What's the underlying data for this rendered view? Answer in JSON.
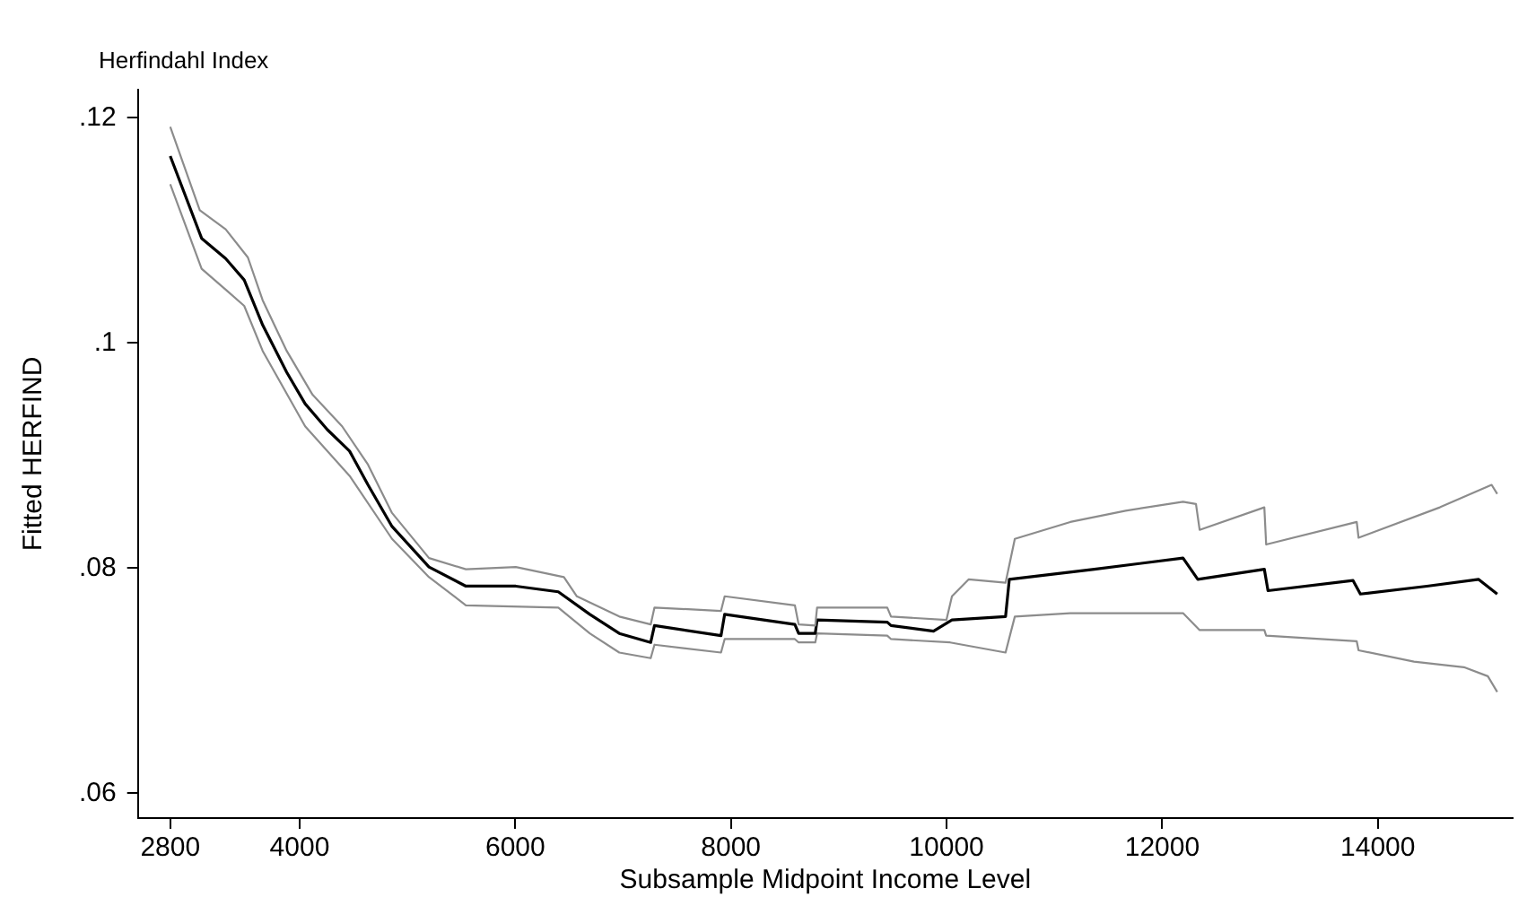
{
  "chart_data": {
    "type": "line",
    "title": "Herfindahl Index",
    "xlabel": "Subsample Midpoint Income Level",
    "ylabel": "Fitted HERFIND",
    "xlim": [
      2500,
      15250
    ],
    "xticks": [
      2800,
      4000,
      6000,
      8000,
      10000,
      12000,
      14000
    ],
    "ylim": [
      0.0578,
      0.1225
    ],
    "yticks": [
      {
        "value": 0.06,
        "label": ".06"
      },
      {
        "value": 0.08,
        "label": ".08"
      },
      {
        "value": 0.1,
        "label": ".1"
      },
      {
        "value": 0.12,
        "label": ".12"
      }
    ],
    "grid": false,
    "legend": false,
    "marker": "none",
    "line_style": "solid",
    "series": [
      {
        "color": "#8c8c8c",
        "x": [
          2800,
          3074,
          3314,
          3520,
          3657,
          3880,
          4120,
          4394,
          4634,
          4857,
          5200,
          5542,
          6005,
          6451,
          6571,
          6965,
          7256,
          7291,
          7908,
          7942,
          8593,
          8628,
          8782,
          8799,
          9450,
          9485,
          9999,
          10050,
          10204,
          10547,
          10633,
          11147,
          11661,
          12193,
          12313,
          12347,
          12947,
          12964,
          13804,
          13821,
          14575,
          15055,
          15107
        ],
        "values": [
          0.1192,
          0.1118,
          0.1101,
          0.1076,
          0.1038,
          0.0993,
          0.0954,
          0.0926,
          0.0892,
          0.0849,
          0.0809,
          0.0799,
          0.0801,
          0.0792,
          0.0775,
          0.0757,
          0.075,
          0.0765,
          0.0762,
          0.0775,
          0.0767,
          0.075,
          0.0749,
          0.0765,
          0.0765,
          0.0757,
          0.0754,
          0.0775,
          0.079,
          0.0787,
          0.0826,
          0.0841,
          0.0851,
          0.0859,
          0.0857,
          0.0834,
          0.0854,
          0.0821,
          0.0841,
          0.0827,
          0.0854,
          0.0874,
          0.0866
        ]
      },
      {
        "color": "#000000",
        "x": [
          2800,
          3091,
          3314,
          3486,
          3657,
          3880,
          4051,
          4257,
          4463,
          4634,
          4857,
          5200,
          5542,
          6005,
          6399,
          6691,
          6965,
          7256,
          7291,
          7908,
          7942,
          8593,
          8628,
          8782,
          8799,
          9450,
          9485,
          9879,
          10050,
          10547,
          10582,
          11370,
          12193,
          12330,
          12947,
          12981,
          13770,
          13838,
          14455,
          14935,
          15107
        ],
        "values": [
          0.1166,
          0.1093,
          0.1075,
          0.1056,
          0.1016,
          0.0974,
          0.0946,
          0.0923,
          0.0904,
          0.0874,
          0.0837,
          0.0801,
          0.0784,
          0.0784,
          0.0779,
          0.0759,
          0.0742,
          0.0734,
          0.0749,
          0.074,
          0.0759,
          0.075,
          0.0742,
          0.0742,
          0.0754,
          0.0752,
          0.0749,
          0.0744,
          0.0754,
          0.0757,
          0.079,
          0.0799,
          0.0809,
          0.079,
          0.0799,
          0.078,
          0.0789,
          0.0777,
          0.0784,
          0.079,
          0.0777
        ]
      },
      {
        "color": "#8c8c8c",
        "x": [
          2800,
          3091,
          3486,
          3657,
          4051,
          4463,
          4857,
          5200,
          5542,
          6399,
          6691,
          6965,
          7256,
          7291,
          7908,
          7942,
          8593,
          8628,
          8782,
          8799,
          9450,
          9485,
          10033,
          10547,
          10633,
          11147,
          12193,
          12347,
          12947,
          12964,
          13804,
          13821,
          14335,
          14798,
          15020,
          15107
        ],
        "values": [
          0.1141,
          0.1066,
          0.1033,
          0.0993,
          0.0926,
          0.0882,
          0.0826,
          0.0792,
          0.0767,
          0.0765,
          0.0742,
          0.0725,
          0.072,
          0.0732,
          0.0725,
          0.0737,
          0.0737,
          0.0734,
          0.0734,
          0.0742,
          0.074,
          0.0737,
          0.0734,
          0.0725,
          0.0757,
          0.076,
          0.076,
          0.0745,
          0.0745,
          0.074,
          0.0735,
          0.0727,
          0.0717,
          0.0712,
          0.0704,
          0.069
        ]
      }
    ]
  }
}
